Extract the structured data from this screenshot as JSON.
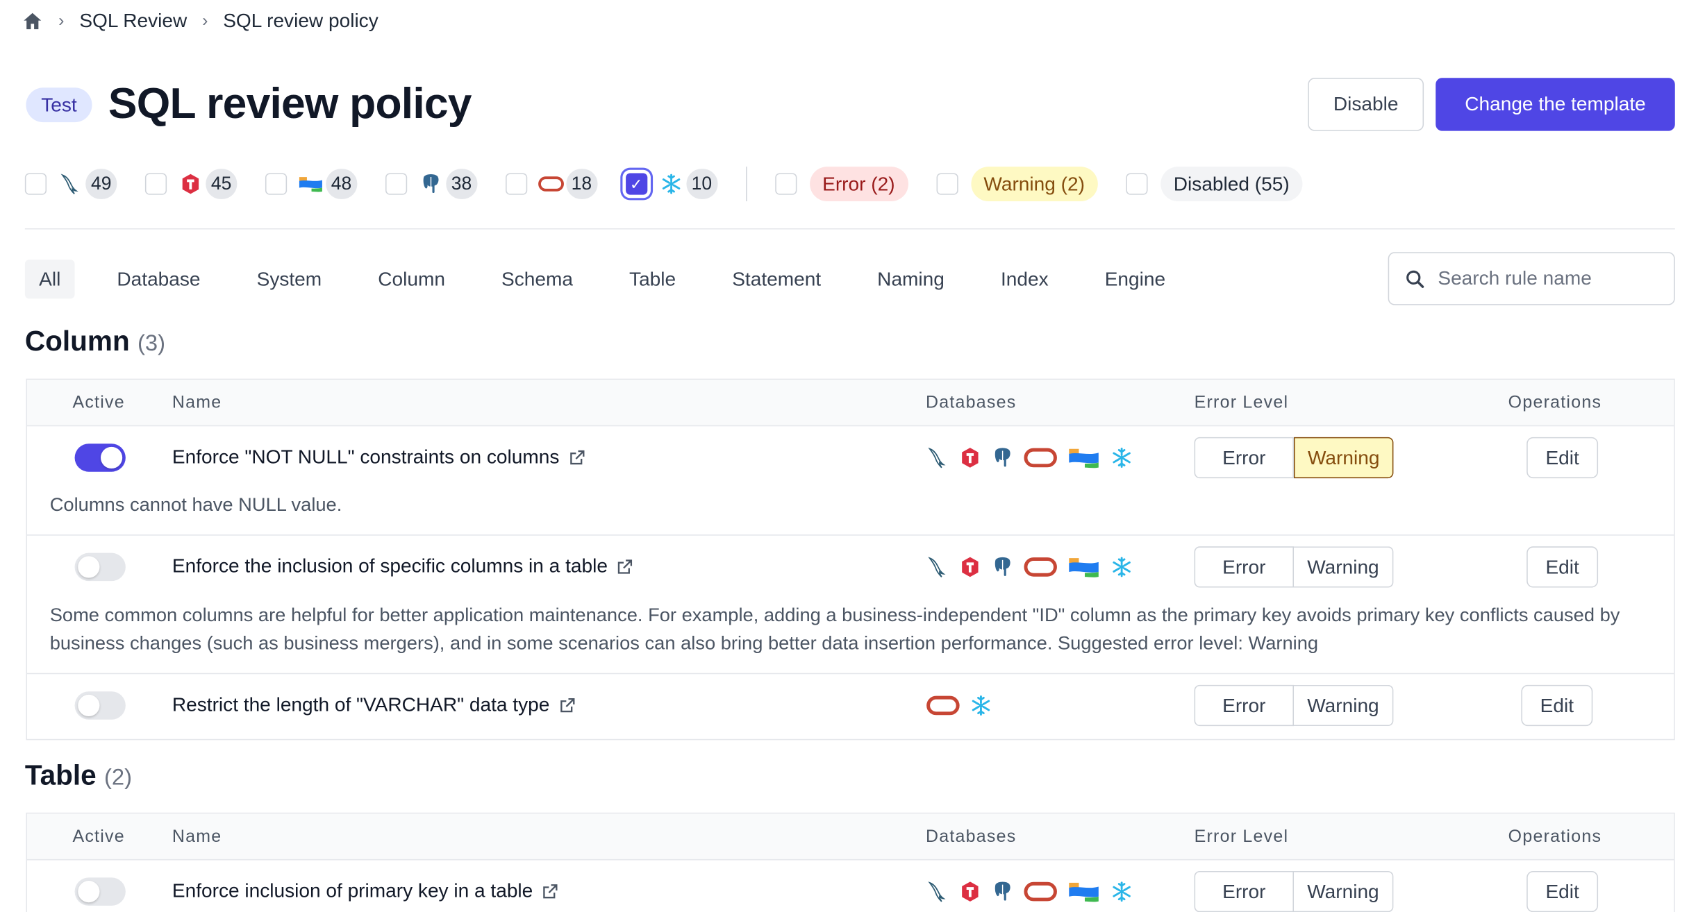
{
  "breadcrumb": {
    "items": [
      "SQL Review",
      "SQL review policy"
    ]
  },
  "header": {
    "env_badge": "Test",
    "title": "SQL review policy",
    "disable_label": "Disable",
    "change_template_label": "Change the template"
  },
  "filters": {
    "engines": [
      {
        "icon": "mysql-icon",
        "count": "49",
        "checked": false
      },
      {
        "icon": "tidb-icon",
        "count": "45",
        "checked": false
      },
      {
        "icon": "oceanbase-icon",
        "count": "48",
        "checked": false
      },
      {
        "icon": "postgresql-icon",
        "count": "38",
        "checked": false
      },
      {
        "icon": "oracle-icon",
        "count": "18",
        "checked": false
      },
      {
        "icon": "snowflake-icon",
        "count": "10",
        "checked": true
      }
    ],
    "levels": [
      {
        "label": "Error (2)",
        "bg": "#fee2e2",
        "color": "#991b1b"
      },
      {
        "label": "Warning (2)",
        "bg": "#fef9c3",
        "color": "#854d0e"
      },
      {
        "label": "Disabled (55)",
        "bg": "#f3f4f6",
        "color": "#1f2937"
      }
    ]
  },
  "tabs": [
    "All",
    "Database",
    "System",
    "Column",
    "Schema",
    "Table",
    "Statement",
    "Naming",
    "Index",
    "Engine"
  ],
  "search": {
    "placeholder": "Search rule name"
  },
  "columns": {
    "active": "Active",
    "name": "Name",
    "databases": "Databases",
    "error_level": "Error Level",
    "operations": "Operations"
  },
  "levels": {
    "error": "Error",
    "warning": "Warning"
  },
  "edit_label": "Edit",
  "sections": [
    {
      "title": "Column",
      "count": "(3)",
      "rules": [
        {
          "name": "Enforce \"NOT NULL\" constraints on columns",
          "active": true,
          "level": "Warning",
          "dbs": [
            "mysql",
            "tidb",
            "postgresql",
            "oracle",
            "oceanbase",
            "snowflake"
          ],
          "desc": "Columns cannot have NULL value."
        },
        {
          "name": "Enforce the inclusion of specific columns in a table",
          "active": false,
          "level": null,
          "dbs": [
            "mysql",
            "tidb",
            "postgresql",
            "oracle",
            "oceanbase",
            "snowflake"
          ],
          "desc": "Some common columns are helpful for better application maintenance. For example, adding a business-independent \"ID\" column as the primary key avoids primary key conflicts caused by business changes (such as business mergers), and in some scenarios can also bring better data insertion performance. Suggested error level: Warning"
        },
        {
          "name": "Restrict the length of \"VARCHAR\" data type",
          "active": false,
          "level": null,
          "dbs": [
            "oracle",
            "snowflake"
          ],
          "desc": ""
        }
      ]
    },
    {
      "title": "Table",
      "count": "(2)",
      "rules": [
        {
          "name": "Enforce inclusion of primary key in a table",
          "active": false,
          "level": null,
          "dbs": [
            "mysql",
            "tidb",
            "postgresql",
            "oracle",
            "oceanbase",
            "snowflake"
          ],
          "desc": ""
        }
      ]
    }
  ],
  "colors": {
    "accent": "#4f46e5",
    "warning_bg": "#fef9c3",
    "error_bg": "#fee2e2"
  }
}
